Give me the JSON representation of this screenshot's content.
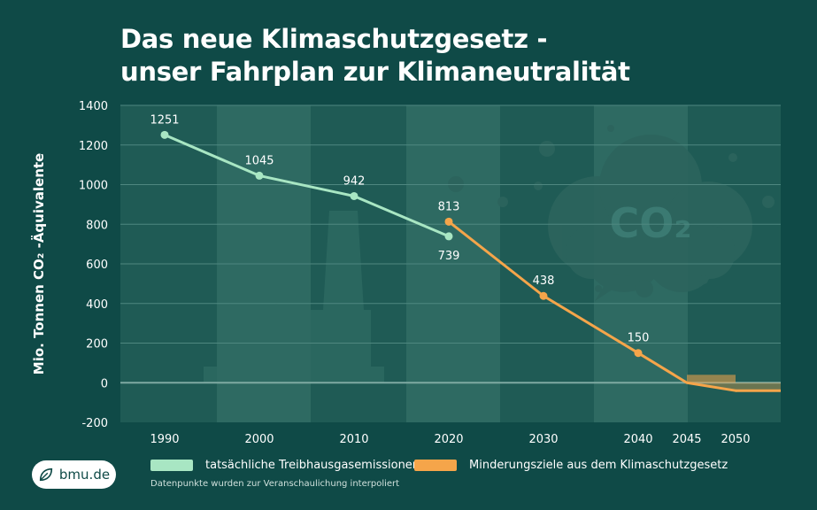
{
  "title": {
    "line1": "Das neue Klimaschutzgesetz -",
    "line2": "unser Fahrplan zur Klimaneutralität"
  },
  "ylabel": "Mio. Tonnen CO₂ -Äquivalente",
  "legend": {
    "actual": "tatsächliche Treibhausgasemissionen",
    "target": "Minderungsziele aus dem Klimaschutzgesetz"
  },
  "note": "Datenpunkte wurden zur Veranschaulichung interpoliert",
  "logo": "bmu.de",
  "cloud_text": "CO₂",
  "colors": {
    "background": "#0f4a47",
    "actual": "#a8e6c3",
    "target": "#f5a54a"
  },
  "chart_data": {
    "type": "line",
    "ylim": [
      -200,
      1400
    ],
    "yticks": [
      -200,
      0,
      200,
      400,
      600,
      800,
      1000,
      1200,
      1400
    ],
    "xticks": [
      1990,
      2000,
      2010,
      2020,
      2030,
      2040,
      2045,
      2050
    ],
    "series": [
      {
        "name": "tatsächliche Treibhausgasemissionen",
        "points": [
          {
            "x": 1990,
            "y": 1251,
            "label": "1251"
          },
          {
            "x": 2000,
            "y": 1045,
            "label": "1045"
          },
          {
            "x": 2010,
            "y": 942,
            "label": "942"
          },
          {
            "x": 2020,
            "y": 739,
            "label": "739"
          }
        ]
      },
      {
        "name": "Minderungsziele aus dem Klimaschutzgesetz",
        "points": [
          {
            "x": 2020,
            "y": 813,
            "label": "813"
          },
          {
            "x": 2030,
            "y": 438,
            "label": "438"
          },
          {
            "x": 2040,
            "y": 150,
            "label": "150"
          },
          {
            "x": 2045,
            "y": 0,
            "label": ""
          },
          {
            "x": 2050,
            "y": -40,
            "label": ""
          }
        ]
      }
    ]
  }
}
